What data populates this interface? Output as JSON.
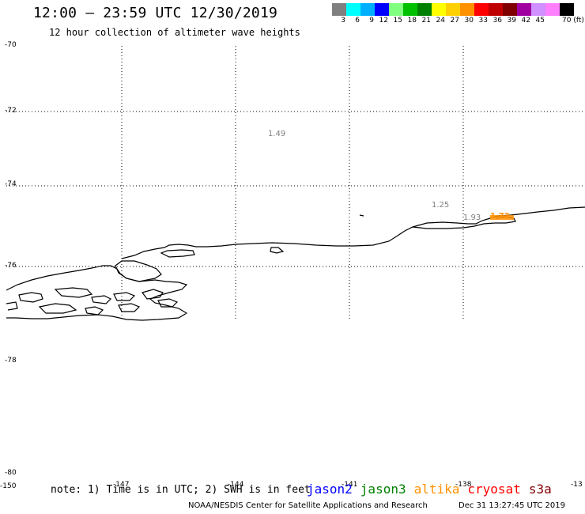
{
  "header": {
    "title": "12:00 – 23:59 UTC 12/30/2019",
    "subtitle": "12 hour collection of altimeter wave heights"
  },
  "legend": {
    "unit": "70 (ft)",
    "bins": [
      {
        "label": "3",
        "color": "#808080"
      },
      {
        "label": "6",
        "color": "#00ffff"
      },
      {
        "label": "9",
        "color": "#00b0ff"
      },
      {
        "label": "12",
        "color": "#0000ff"
      },
      {
        "label": "15",
        "color": "#80ff80"
      },
      {
        "label": "18",
        "color": "#00c000"
      },
      {
        "label": "21",
        "color": "#008000"
      },
      {
        "label": "24",
        "color": "#ffff00"
      },
      {
        "label": "27",
        "color": "#ffd000"
      },
      {
        "label": "30",
        "color": "#ff9000"
      },
      {
        "label": "33",
        "color": "#ff0000"
      },
      {
        "label": "36",
        "color": "#c00000"
      },
      {
        "label": "39",
        "color": "#800000"
      },
      {
        "label": "42",
        "color": "#a000a0"
      },
      {
        "label": "45",
        "color": "#d090ff"
      },
      {
        "label": "",
        "color": "#ff80ff"
      },
      {
        "label": "",
        "color": "#000000"
      }
    ]
  },
  "axes": {
    "lat_labels": [
      "-70",
      "-72",
      "-74",
      "-76",
      "-78",
      "-80"
    ],
    "lon_labels": [
      "-150",
      "-147",
      "-144",
      "-141",
      "-138",
      "-13"
    ]
  },
  "wave_heights": [
    {
      "value": "1.49",
      "color": "#808080"
    },
    {
      "value": "1.25",
      "color": "#808080"
    },
    {
      "value": "1.93",
      "color": "#808080"
    },
    {
      "value": "1.72",
      "color": "#ff9000"
    }
  ],
  "footer": {
    "note": "note: 1) Time is in UTC; 2) SWH is in feet",
    "satellites": [
      {
        "name": "jason2",
        "color": "#0000ff"
      },
      {
        "name": "jason3",
        "color": "#008000"
      },
      {
        "name": "altika",
        "color": "#ff9000"
      },
      {
        "name": "cryosat",
        "color": "#ff0000"
      },
      {
        "name": "s3a",
        "color": "#800000"
      }
    ],
    "credit": "NOAA/NESDIS Center for Satellite Applications and Research",
    "timestamp": "Dec 31 13:27:45 UTC 2019"
  }
}
